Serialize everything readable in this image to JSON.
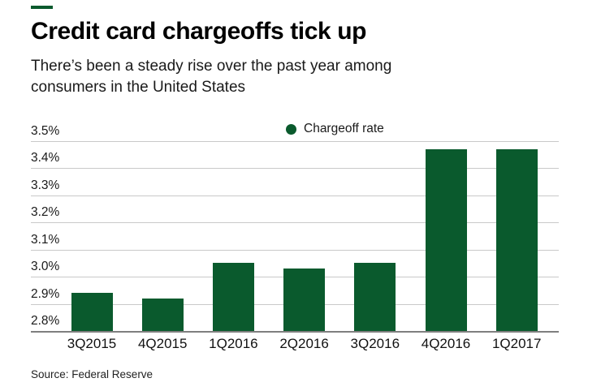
{
  "header": {
    "title": "Credit card chargeoffs tick up",
    "subtitle_lines": [
      "There’s been a steady rise over the past year among",
      "consumers in the United States"
    ]
  },
  "legend": {
    "label": "Chargeoff rate"
  },
  "chart_data": {
    "type": "bar",
    "title": "Credit card chargeoffs tick up",
    "subtitle": "There’s been a steady rise over the past year among consumers in the United States",
    "series_name": "Chargeoff rate",
    "categories": [
      "3Q2015",
      "4Q2015",
      "1Q2016",
      "2Q2016",
      "3Q2016",
      "4Q2016",
      "1Q2017"
    ],
    "values": [
      2.94,
      2.92,
      3.05,
      3.03,
      3.05,
      3.47,
      3.47
    ],
    "value_unit": "%",
    "ylim": [
      2.8,
      3.5
    ],
    "ytick_labels": [
      "3.5%",
      "3.4%",
      "3.3%",
      "3.2%",
      "3.1%",
      "3.0%",
      "2.9%",
      "2.8%"
    ],
    "grid": true,
    "legend_position": "top-center",
    "bar_color": "#0a5a2d"
  },
  "colors": {
    "accent_green": "#0a5a2d",
    "gridline": "#c9c9c9",
    "baseline": "#7f7f7f",
    "text": "#1a1a1a"
  },
  "footer": {
    "source": "Source: Federal Reserve"
  }
}
